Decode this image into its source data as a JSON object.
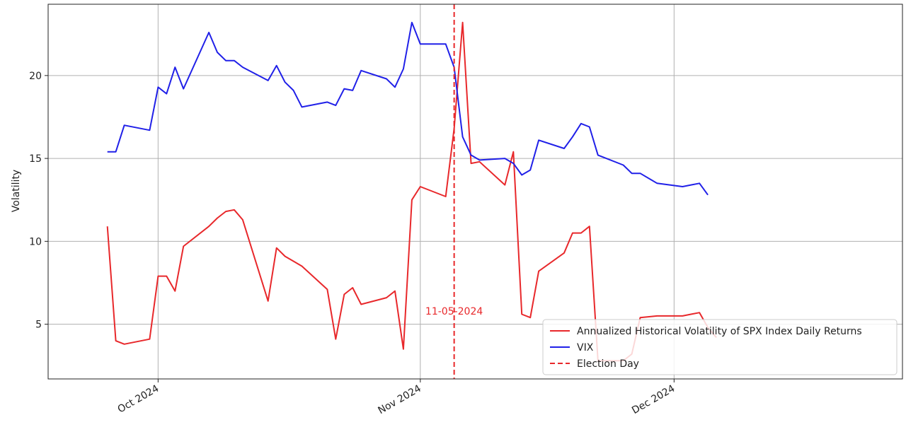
{
  "chart_data": {
    "type": "line",
    "title": "",
    "xlabel": "",
    "ylabel": "Volatility",
    "xlim": [
      "2024-09-18",
      "2024-12-28"
    ],
    "ylim": [
      1.7,
      24.3
    ],
    "x_ticks": [
      {
        "date": "2024-10-01",
        "label": "Oct 2024"
      },
      {
        "date": "2024-11-01",
        "label": "Nov 2024"
      },
      {
        "date": "2024-12-01",
        "label": "Dec 2024"
      }
    ],
    "y_ticks": [
      5,
      10,
      15,
      20
    ],
    "grid": true,
    "legend_position": "lower-right",
    "series": [
      {
        "name": "Annualized Historical Volatility of SPX Index Daily Returns",
        "color": "#e8282b",
        "style": "solid",
        "points": [
          [
            "2024-09-25",
            10.9
          ],
          [
            "2024-09-26",
            4.0
          ],
          [
            "2024-09-27",
            3.8
          ],
          [
            "2024-09-30",
            4.1
          ],
          [
            "2024-10-01",
            7.9
          ],
          [
            "2024-10-02",
            7.9
          ],
          [
            "2024-10-03",
            7.0
          ],
          [
            "2024-10-04",
            9.7
          ],
          [
            "2024-10-07",
            10.9
          ],
          [
            "2024-10-08",
            11.4
          ],
          [
            "2024-10-09",
            11.8
          ],
          [
            "2024-10-10",
            11.9
          ],
          [
            "2024-10-11",
            11.3
          ],
          [
            "2024-10-14",
            6.4
          ],
          [
            "2024-10-15",
            9.6
          ],
          [
            "2024-10-16",
            9.1
          ],
          [
            "2024-10-17",
            8.8
          ],
          [
            "2024-10-18",
            8.5
          ],
          [
            "2024-10-21",
            7.1
          ],
          [
            "2024-10-22",
            4.1
          ],
          [
            "2024-10-23",
            6.8
          ],
          [
            "2024-10-24",
            7.2
          ],
          [
            "2024-10-25",
            6.2
          ],
          [
            "2024-10-28",
            6.6
          ],
          [
            "2024-10-29",
            7.0
          ],
          [
            "2024-10-30",
            3.5
          ],
          [
            "2024-10-31",
            12.5
          ],
          [
            "2024-11-01",
            13.3
          ],
          [
            "2024-11-04",
            12.7
          ],
          [
            "2024-11-05",
            16.8
          ],
          [
            "2024-11-06",
            23.2
          ],
          [
            "2024-11-07",
            14.7
          ],
          [
            "2024-11-08",
            14.8
          ],
          [
            "2024-11-11",
            13.4
          ],
          [
            "2024-11-12",
            15.4
          ],
          [
            "2024-11-13",
            5.6
          ],
          [
            "2024-11-14",
            5.4
          ],
          [
            "2024-11-15",
            8.2
          ],
          [
            "2024-11-18",
            9.3
          ],
          [
            "2024-11-19",
            10.5
          ],
          [
            "2024-11-20",
            10.5
          ],
          [
            "2024-11-21",
            10.9
          ],
          [
            "2024-11-22",
            2.8
          ],
          [
            "2024-11-25",
            2.8
          ],
          [
            "2024-11-26",
            3.2
          ],
          [
            "2024-11-27",
            5.4
          ],
          [
            "2024-11-29",
            5.5
          ],
          [
            "2024-12-02",
            5.5
          ],
          [
            "2024-12-03",
            5.6
          ],
          [
            "2024-12-04",
            5.7
          ],
          [
            "2024-12-05",
            4.8
          ],
          [
            "2024-12-06",
            4.2
          ]
        ]
      },
      {
        "name": "VIX",
        "color": "#2020e8",
        "style": "solid",
        "points": [
          [
            "2024-09-25",
            15.4
          ],
          [
            "2024-09-26",
            15.4
          ],
          [
            "2024-09-27",
            17.0
          ],
          [
            "2024-09-30",
            16.7
          ],
          [
            "2024-10-01",
            19.3
          ],
          [
            "2024-10-02",
            18.9
          ],
          [
            "2024-10-03",
            20.5
          ],
          [
            "2024-10-04",
            19.2
          ],
          [
            "2024-10-07",
            22.6
          ],
          [
            "2024-10-08",
            21.4
          ],
          [
            "2024-10-09",
            20.9
          ],
          [
            "2024-10-10",
            20.9
          ],
          [
            "2024-10-11",
            20.5
          ],
          [
            "2024-10-14",
            19.7
          ],
          [
            "2024-10-15",
            20.6
          ],
          [
            "2024-10-16",
            19.6
          ],
          [
            "2024-10-17",
            19.1
          ],
          [
            "2024-10-18",
            18.1
          ],
          [
            "2024-10-21",
            18.4
          ],
          [
            "2024-10-22",
            18.2
          ],
          [
            "2024-10-23",
            19.2
          ],
          [
            "2024-10-24",
            19.1
          ],
          [
            "2024-10-25",
            20.3
          ],
          [
            "2024-10-28",
            19.8
          ],
          [
            "2024-10-29",
            19.3
          ],
          [
            "2024-10-30",
            20.4
          ],
          [
            "2024-10-31",
            23.2
          ],
          [
            "2024-11-01",
            21.9
          ],
          [
            "2024-11-04",
            21.9
          ],
          [
            "2024-11-05",
            20.5
          ],
          [
            "2024-11-06",
            16.3
          ],
          [
            "2024-11-07",
            15.2
          ],
          [
            "2024-11-08",
            14.9
          ],
          [
            "2024-11-11",
            15.0
          ],
          [
            "2024-11-12",
            14.7
          ],
          [
            "2024-11-13",
            14.0
          ],
          [
            "2024-11-14",
            14.3
          ],
          [
            "2024-11-15",
            16.1
          ],
          [
            "2024-11-18",
            15.6
          ],
          [
            "2024-11-19",
            16.3
          ],
          [
            "2024-11-20",
            17.1
          ],
          [
            "2024-11-21",
            16.9
          ],
          [
            "2024-11-22",
            15.2
          ],
          [
            "2024-11-25",
            14.6
          ],
          [
            "2024-11-26",
            14.1
          ],
          [
            "2024-11-27",
            14.1
          ],
          [
            "2024-11-29",
            13.5
          ],
          [
            "2024-12-02",
            13.3
          ],
          [
            "2024-12-03",
            13.4
          ],
          [
            "2024-12-04",
            13.5
          ],
          [
            "2024-12-05",
            12.8
          ]
        ]
      }
    ],
    "vertical_line": {
      "date": "2024-11-05",
      "name": "Election Day",
      "color": "#e8282b",
      "style": "dashed",
      "label": "11-05-2024",
      "label_y": 5.8
    }
  }
}
